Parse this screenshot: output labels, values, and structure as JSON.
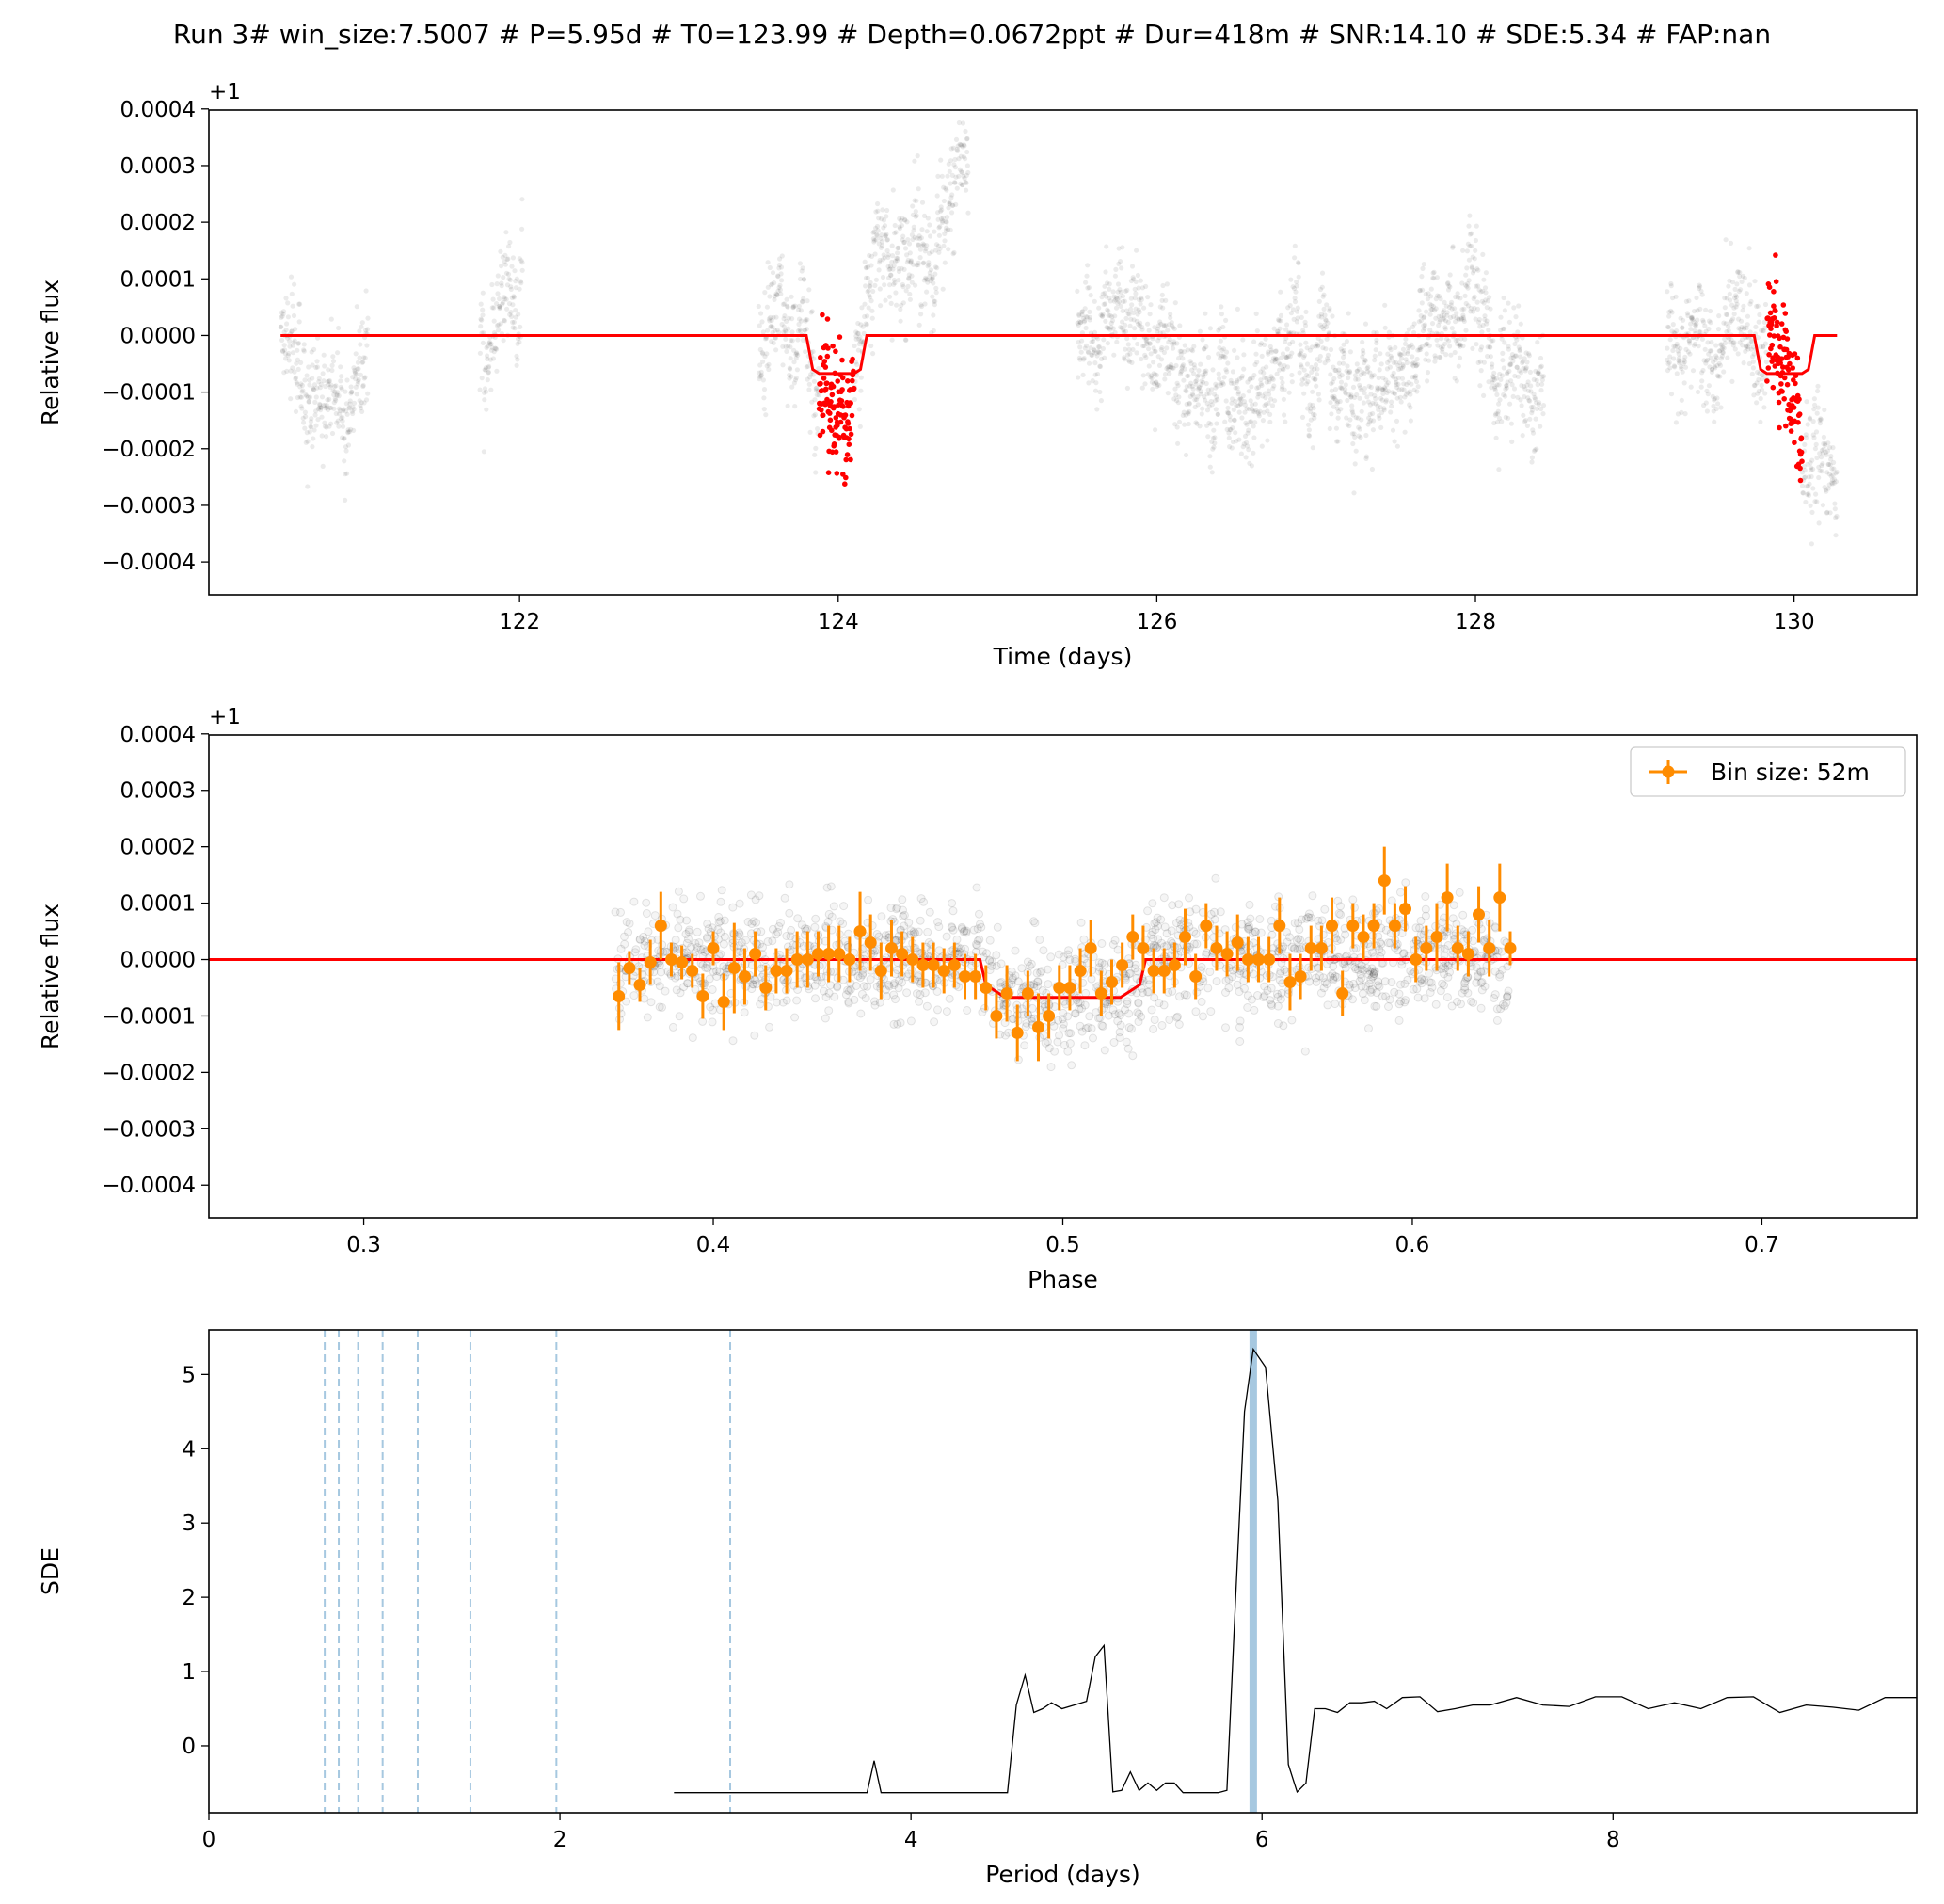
{
  "figure": {
    "title": "Run 3# win_size:7.5007 # P=5.95d # T0=123.99 # Depth=0.0672ppt # Dur=418m # SNR:14.10 # SDE:5.34 # FAP:nan"
  },
  "chart_data": [
    {
      "type": "scatter",
      "panel": "light-curve",
      "xlabel": "Time (days)",
      "ylabel": "Relative flux",
      "offset_text": "+1",
      "xlim": [
        120.05,
        130.77
      ],
      "ylim": [
        -0.000458,
        0.000398
      ],
      "xticks": [
        122,
        124,
        126,
        128,
        130
      ],
      "xtick_labels": [
        "122",
        "124",
        "126",
        "128",
        "130"
      ],
      "yticks": [
        -0.0004,
        -0.0003,
        -0.0002,
        -0.0001,
        0.0,
        0.0001,
        0.0002,
        0.0003,
        0.0004
      ],
      "ytick_labels": [
        "−0.0004",
        "−0.0003",
        "−0.0002",
        "−0.0001",
        "0.0000",
        "0.0001",
        "0.0002",
        "0.0003",
        "0.0004"
      ],
      "grid": false,
      "data_segments": [
        [
          120.5,
          121.05
        ],
        [
          121.75,
          122.02
        ],
        [
          123.5,
          124.82
        ],
        [
          125.5,
          128.43
        ],
        [
          129.2,
          130.27
        ]
      ],
      "transit_segments": [
        [
          123.88,
          124.1
        ],
        [
          129.83,
          130.05
        ]
      ],
      "scatter_color": "#000000",
      "transit_color": "#ff0000",
      "model": {
        "color": "#ff0000",
        "x": [
          120.5,
          123.8,
          123.84,
          123.88,
          124.1,
          124.14,
          124.18,
          129.75,
          129.79,
          129.83,
          130.05,
          130.09,
          130.13,
          130.27
        ],
        "y": [
          0.0,
          0.0,
          -6e-05,
          -6.72e-05,
          -6.72e-05,
          -6e-05,
          0.0,
          0.0,
          -6e-05,
          -6.72e-05,
          -6.72e-05,
          -6e-05,
          0.0,
          0.0
        ]
      }
    },
    {
      "type": "scatter",
      "panel": "phase-fold",
      "xlabel": "Phase",
      "ylabel": "Relative flux",
      "offset_text": "+1",
      "xlim": [
        0.2557,
        0.7443
      ],
      "ylim": [
        -0.000458,
        0.000398
      ],
      "xticks": [
        0.3,
        0.4,
        0.5,
        0.6,
        0.7
      ],
      "xtick_labels": [
        "0.3",
        "0.4",
        "0.5",
        "0.6",
        "0.7"
      ],
      "yticks": [
        -0.0004,
        -0.0003,
        -0.0002,
        -0.0001,
        0.0,
        0.0001,
        0.0002,
        0.0003,
        0.0004
      ],
      "ytick_labels": [
        "−0.0004",
        "−0.0003",
        "−0.0002",
        "−0.0001",
        "0.0000",
        "0.0001",
        "0.0002",
        "0.0003",
        "0.0004"
      ],
      "grid": false,
      "legend": {
        "label": "Bin size: 52m",
        "placement": "upper right"
      },
      "points_range": [
        0.372,
        0.628
      ],
      "binned": {
        "color": "#ff8c00",
        "x": [
          0.373,
          0.376,
          0.379,
          0.382,
          0.385,
          0.388,
          0.391,
          0.394,
          0.397,
          0.4,
          0.403,
          0.406,
          0.409,
          0.412,
          0.415,
          0.418,
          0.421,
          0.424,
          0.427,
          0.43,
          0.433,
          0.436,
          0.439,
          0.442,
          0.445,
          0.448,
          0.451,
          0.454,
          0.457,
          0.46,
          0.463,
          0.466,
          0.469,
          0.472,
          0.475,
          0.478,
          0.481,
          0.484,
          0.487,
          0.49,
          0.493,
          0.496,
          0.499,
          0.502,
          0.505,
          0.508,
          0.511,
          0.514,
          0.517,
          0.52,
          0.523,
          0.526,
          0.529,
          0.532,
          0.535,
          0.538,
          0.541,
          0.544,
          0.547,
          0.55,
          0.553,
          0.556,
          0.559,
          0.562,
          0.565,
          0.568,
          0.571,
          0.574,
          0.577,
          0.58,
          0.583,
          0.586,
          0.589,
          0.592,
          0.595,
          0.598,
          0.601,
          0.604,
          0.607,
          0.61,
          0.613,
          0.616,
          0.619,
          0.622,
          0.625,
          0.628
        ],
        "y": [
          -6.5e-05,
          -1.5e-05,
          -4.5e-05,
          -5e-06,
          6e-05,
          0.0,
          -5e-06,
          -2e-05,
          -6.5e-05,
          2e-05,
          -7.5e-05,
          -1.5e-05,
          -3e-05,
          1e-05,
          -5e-05,
          -2e-05,
          -2e-05,
          0.0,
          0.0,
          1e-05,
          1e-05,
          1e-05,
          0.0,
          5e-05,
          3e-05,
          -2e-05,
          2e-05,
          1e-05,
          0.0,
          -1e-05,
          -1e-05,
          -2e-05,
          -1e-05,
          -3e-05,
          -3e-05,
          -5e-05,
          -0.0001,
          -6e-05,
          -0.00013,
          -6e-05,
          -0.00012,
          -0.0001,
          -5e-05,
          -5e-05,
          -2e-05,
          2e-05,
          -6e-05,
          -4e-05,
          -1e-05,
          4e-05,
          2e-05,
          -2e-05,
          -2e-05,
          -1e-05,
          4e-05,
          -3e-05,
          6e-05,
          2e-05,
          1e-05,
          3e-05,
          0.0,
          0.0,
          0.0,
          6e-05,
          -4e-05,
          -3e-05,
          2e-05,
          2e-05,
          6e-05,
          -6e-05,
          6e-05,
          4e-05,
          6e-05,
          0.00014,
          6e-05,
          9e-05,
          0.0,
          2e-05,
          4e-05,
          0.00011,
          2e-05,
          1e-05,
          8e-05,
          2e-05,
          0.00011,
          2e-05
        ],
        "err": [
          6e-05,
          3e-05,
          3e-05,
          4e-05,
          6e-05,
          3e-05,
          3e-05,
          3e-05,
          4e-05,
          3e-05,
          5e-05,
          8e-05,
          5e-05,
          4e-05,
          4e-05,
          4e-05,
          4e-05,
          5e-05,
          5e-05,
          4e-05,
          5e-05,
          5e-05,
          4e-05,
          7e-05,
          5e-05,
          5e-05,
          5e-05,
          4e-05,
          4e-05,
          4e-05,
          4e-05,
          4e-05,
          4e-05,
          4e-05,
          4e-05,
          4e-05,
          4e-05,
          5e-05,
          5e-05,
          4e-05,
          6e-05,
          4e-05,
          4e-05,
          4e-05,
          4e-05,
          5e-05,
          4e-05,
          4e-05,
          4e-05,
          4e-05,
          4e-05,
          4e-05,
          4e-05,
          4e-05,
          5e-05,
          4e-05,
          4e-05,
          4e-05,
          4e-05,
          5e-05,
          4e-05,
          4e-05,
          4e-05,
          5e-05,
          5e-05,
          4e-05,
          4e-05,
          4e-05,
          5e-05,
          4e-05,
          4e-05,
          4e-05,
          4e-05,
          6e-05,
          4e-05,
          4e-05,
          4e-05,
          4e-05,
          6e-05,
          6e-05,
          4e-05,
          4e-05,
          5e-05,
          5e-05,
          6e-05,
          3e-05
        ]
      },
      "model": {
        "color": "#ff0000",
        "x": [
          0.2557,
          0.4763,
          0.478,
          0.4835,
          0.5165,
          0.522,
          0.5237,
          0.7443
        ],
        "y": [
          0.0,
          0.0,
          -4.5e-05,
          -6.72e-05,
          -6.72e-05,
          -4.5e-05,
          0.0,
          0.0
        ]
      }
    },
    {
      "type": "line",
      "panel": "periodogram",
      "xlabel": "Period (days)",
      "ylabel": "SDE",
      "xlim": [
        0,
        9.73
      ],
      "ylim": [
        -0.9,
        5.6
      ],
      "xticks": [
        0,
        2,
        4,
        6,
        8
      ],
      "xtick_labels": [
        "0",
        "2",
        "4",
        "6",
        "8"
      ],
      "yticks": [
        0,
        1,
        2,
        3,
        4,
        5
      ],
      "ytick_labels": [
        "0",
        "1",
        "2",
        "3",
        "4",
        "5"
      ],
      "grid": false,
      "best_period": 5.95,
      "harmonic_lines": [
        0.66,
        0.74,
        0.85,
        0.99,
        1.19,
        1.49,
        1.98,
        2.97
      ],
      "highlight_color": "#a6c8e0",
      "x": [
        2.65,
        3.0,
        3.3,
        3.6,
        3.75,
        3.79,
        3.83,
        4.0,
        4.2,
        4.4,
        4.55,
        4.6,
        4.65,
        4.7,
        4.75,
        4.8,
        4.86,
        4.93,
        5.0,
        5.05,
        5.1,
        5.15,
        5.2,
        5.25,
        5.3,
        5.35,
        5.4,
        5.45,
        5.5,
        5.55,
        5.6,
        5.65,
        5.7,
        5.75,
        5.8,
        5.85,
        5.9,
        5.95,
        6.02,
        6.09,
        6.15,
        6.2,
        6.25,
        6.3,
        6.36,
        6.43,
        6.5,
        6.57,
        6.64,
        6.71,
        6.8,
        6.9,
        7.0,
        7.1,
        7.2,
        7.3,
        7.45,
        7.6,
        7.75,
        7.9,
        8.05,
        8.2,
        8.35,
        8.5,
        8.65,
        8.8,
        8.95,
        9.1,
        9.25,
        9.4,
        9.55,
        9.73
      ],
      "y": [
        -0.63,
        -0.63,
        -0.63,
        -0.63,
        -0.63,
        -0.2,
        -0.63,
        -0.63,
        -0.63,
        -0.63,
        -0.63,
        0.55,
        0.95,
        0.45,
        0.5,
        0.58,
        0.5,
        0.55,
        0.6,
        1.2,
        1.35,
        -0.62,
        -0.6,
        -0.35,
        -0.6,
        -0.5,
        -0.6,
        -0.5,
        -0.5,
        -0.63,
        -0.63,
        -0.63,
        -0.63,
        -0.63,
        -0.6,
        2.0,
        4.5,
        5.34,
        5.1,
        3.3,
        -0.25,
        -0.62,
        -0.5,
        0.5,
        0.5,
        0.45,
        0.58,
        0.58,
        0.6,
        0.5,
        0.65,
        0.66,
        0.46,
        0.5,
        0.55,
        0.55,
        0.65,
        0.55,
        0.53,
        0.66,
        0.66,
        0.5,
        0.58,
        0.5,
        0.65,
        0.66,
        0.45,
        0.55,
        0.52,
        0.48,
        0.65,
        0.65
      ]
    }
  ]
}
